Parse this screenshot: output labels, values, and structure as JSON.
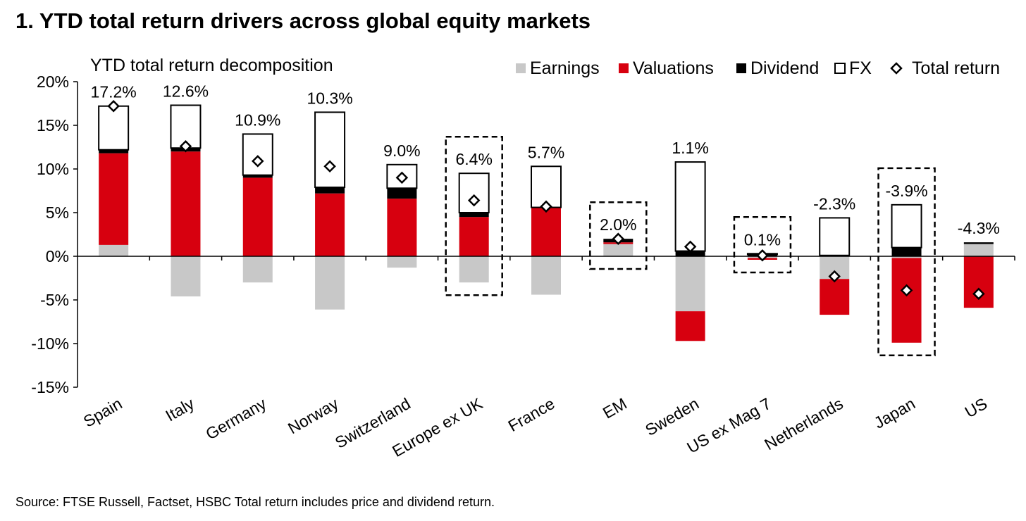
{
  "title": "1. YTD total return drivers across global equity markets",
  "source": "Source: FTSE Russell, Factset, HSBC Total return includes price and dividend return.",
  "colors": {
    "earnings": "#c8c8c8",
    "valuations": "#d7000f",
    "dividend": "#000000",
    "fx": "#ffffff"
  },
  "chart_data": {
    "type": "bar",
    "stacked": true,
    "title": "YTD total return decomposition",
    "ylim": [
      -15,
      20
    ],
    "yticks": [
      -15,
      -10,
      -5,
      0,
      5,
      10,
      15,
      20
    ],
    "ytick_labels": [
      "-15%",
      "-10%",
      "-5%",
      "0%",
      "5%",
      "10%",
      "15%",
      "20%"
    ],
    "legend_position": "top-right",
    "categories": [
      "Spain",
      "Italy",
      "Germany",
      "Norway",
      "Switzerland",
      "Europe ex UK",
      "France",
      "EM",
      "Sweden",
      "US ex Mag 7",
      "Netherlands",
      "Japan",
      "US"
    ],
    "series": [
      {
        "name": "Earnings",
        "key": "earnings",
        "values": [
          1.3,
          -4.6,
          -3.0,
          -6.1,
          -1.3,
          -3.0,
          -4.4,
          1.4,
          -6.3,
          -0.2,
          -2.6,
          -0.2,
          1.4
        ]
      },
      {
        "name": "Valuations",
        "key": "valuations",
        "values": [
          10.5,
          12.0,
          9.0,
          7.2,
          6.6,
          4.5,
          5.6,
          0.2,
          -3.4,
          -0.2,
          -4.1,
          -9.7,
          -5.9
        ]
      },
      {
        "name": "Dividend",
        "key": "dividend",
        "values": [
          0.4,
          0.4,
          0.3,
          0.7,
          1.2,
          0.5,
          0.0,
          0.4,
          0.6,
          0.2,
          0.1,
          1.0,
          0.2
        ]
      },
      {
        "name": "FX",
        "key": "fx",
        "values": [
          5.0,
          4.9,
          4.7,
          8.6,
          2.7,
          4.5,
          4.7,
          0.0,
          10.2,
          0.1,
          4.3,
          4.9,
          0.0
        ]
      }
    ],
    "total_return": {
      "name": "Total return",
      "values": [
        17.2,
        12.6,
        10.9,
        10.3,
        9.0,
        6.4,
        5.7,
        2.0,
        1.1,
        0.1,
        -2.3,
        -3.9,
        -4.3
      ],
      "labels": [
        "17.2%",
        "12.6%",
        "10.9%",
        "10.3%",
        "9.0%",
        "6.4%",
        "5.7%",
        "2.0%",
        "1.1%",
        "0.1%",
        "-2.3%",
        "-3.9%",
        "-4.3%"
      ]
    },
    "highlighted": [
      "Europe ex UK",
      "EM",
      "US ex Mag 7",
      "Japan"
    ]
  }
}
